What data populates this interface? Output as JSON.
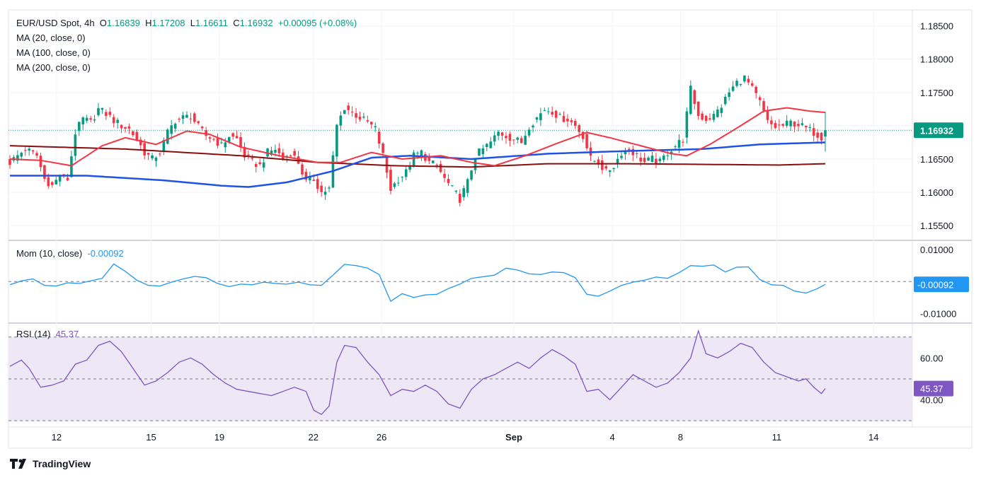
{
  "legend": {
    "symbol": "EUR/USD Spot, 4h",
    "open_label": "O",
    "open": "1.16839",
    "high_label": "H",
    "high": "1.17208",
    "low_label": "L",
    "low": "1.16611",
    "close_label": "C",
    "close": "1.16932",
    "change": "+0.00095 (+0.08%)",
    "ma20": "MA (20, close, 0)",
    "ma100": "MA (100, close, 0)",
    "ma200": "MA (200, close, 0)"
  },
  "momentum": {
    "label": "Mom (10, close)",
    "value": "-0.00092"
  },
  "rsi": {
    "label": "RSI (14)",
    "value": "45.37"
  },
  "branding": {
    "name": "TradingView"
  },
  "colors": {
    "up": "#089981",
    "down": "#f23645",
    "ma20": "#f23645",
    "ma100": "#1e53e5",
    "ma200": "#880e0e",
    "mom": "#2196f3",
    "rsi": "#7e57c2",
    "rsi_band": "#ede7f6"
  },
  "chart_data": {
    "type": "candlestick",
    "price_axis": {
      "ticks": [
        "1.18500",
        "1.18000",
        "1.17500",
        "1.17000",
        "1.16500",
        "1.16000",
        "1.15500"
      ],
      "range": [
        1.153,
        1.1874
      ],
      "last_price_label": "1.16932",
      "last_price": 1.16932
    },
    "x_axis": {
      "ticks": [
        {
          "label": "12",
          "pos": 0.0532
        },
        {
          "label": "15",
          "pos": 0.1578
        },
        {
          "label": "19",
          "pos": 0.2333
        },
        {
          "label": "22",
          "pos": 0.3373
        },
        {
          "label": "26",
          "pos": 0.4128
        },
        {
          "label": "Sep",
          "pos": 0.5591,
          "bold": true
        },
        {
          "label": "4",
          "pos": 0.6681
        },
        {
          "label": "8",
          "pos": 0.7434
        },
        {
          "label": "11",
          "pos": 0.8499
        },
        {
          "label": "14",
          "pos": 0.9571
        }
      ]
    },
    "candles": [],
    "anchor_closes": [
      [
        0,
        1.1645
      ],
      [
        4,
        1.1665
      ],
      [
        7,
        1.1655
      ],
      [
        9,
        1.162
      ],
      [
        11,
        1.161
      ],
      [
        13,
        1.1625
      ],
      [
        15,
        1.162
      ],
      [
        17,
        1.169
      ],
      [
        19,
        1.171
      ],
      [
        21,
        1.1705
      ],
      [
        23,
        1.1725
      ],
      [
        25,
        1.1718
      ],
      [
        27,
        1.1708
      ],
      [
        29,
        1.17
      ],
      [
        31,
        1.1695
      ],
      [
        33,
        1.168
      ],
      [
        35,
        1.166
      ],
      [
        37,
        1.165
      ],
      [
        39,
        1.166
      ],
      [
        41,
        1.169
      ],
      [
        43,
        1.1708
      ],
      [
        45,
        1.1712
      ],
      [
        47,
        1.1715
      ],
      [
        49,
        1.1698
      ],
      [
        51,
        1.1685
      ],
      [
        53,
        1.168
      ],
      [
        55,
        1.167
      ],
      [
        57,
        1.1685
      ],
      [
        59,
        1.168
      ],
      [
        61,
        1.1655
      ],
      [
        63,
        1.1645
      ],
      [
        65,
        1.164
      ],
      [
        67,
        1.166
      ],
      [
        69,
        1.1665
      ],
      [
        71,
        1.165
      ],
      [
        73,
        1.166
      ],
      [
        75,
        1.1645
      ],
      [
        77,
        1.1615
      ],
      [
        79,
        1.162
      ],
      [
        81,
        1.16
      ],
      [
        83,
        1.1605
      ],
      [
        85,
        1.17
      ],
      [
        87,
        1.1728
      ],
      [
        89,
        1.172
      ],
      [
        91,
        1.1712
      ],
      [
        93,
        1.1705
      ],
      [
        95,
        1.1695
      ],
      [
        97,
        1.1655
      ],
      [
        99,
        1.1605
      ],
      [
        101,
        1.162
      ],
      [
        103,
        1.163
      ],
      [
        105,
        1.1655
      ],
      [
        107,
        1.166
      ],
      [
        109,
        1.1645
      ],
      [
        111,
        1.164
      ],
      [
        113,
        1.162
      ],
      [
        115,
        1.1605
      ],
      [
        117,
        1.159
      ],
      [
        119,
        1.1615
      ],
      [
        121,
        1.1655
      ],
      [
        123,
        1.1665
      ],
      [
        125,
        1.1675
      ],
      [
        127,
        1.169
      ],
      [
        129,
        1.1685
      ],
      [
        131,
        1.168
      ],
      [
        133,
        1.1675
      ],
      [
        135,
        1.17
      ],
      [
        137,
        1.1712
      ],
      [
        139,
        1.1725
      ],
      [
        141,
        1.1722
      ],
      [
        143,
        1.1712
      ],
      [
        145,
        1.171
      ],
      [
        147,
        1.17
      ],
      [
        149,
        1.1685
      ],
      [
        151,
        1.165
      ],
      [
        153,
        1.1645
      ],
      [
        155,
        1.163
      ],
      [
        157,
        1.164
      ],
      [
        159,
        1.166
      ],
      [
        161,
        1.1665
      ],
      [
        163,
        1.1655
      ],
      [
        165,
        1.1645
      ],
      [
        167,
        1.165
      ],
      [
        169,
        1.1645
      ],
      [
        171,
        1.166
      ],
      [
        173,
        1.167
      ],
      [
        175,
        1.168
      ],
      [
        177,
        1.1755
      ],
      [
        179,
        1.1715
      ],
      [
        181,
        1.171
      ],
      [
        183,
        1.1715
      ],
      [
        185,
        1.173
      ],
      [
        187,
        1.175
      ],
      [
        189,
        1.1765
      ],
      [
        191,
        1.1772
      ],
      [
        193,
        1.1755
      ],
      [
        195,
        1.1735
      ],
      [
        197,
        1.1705
      ],
      [
        199,
        1.1698
      ],
      [
        201,
        1.17
      ],
      [
        203,
        1.1705
      ],
      [
        205,
        1.1702
      ],
      [
        207,
        1.1696
      ],
      [
        209,
        1.169
      ],
      [
        211,
        1.1683
      ],
      [
        212,
        1.1693
      ]
    ],
    "ma20": [
      [
        0,
        1.165
      ],
      [
        8,
        1.1648
      ],
      [
        16,
        1.164
      ],
      [
        24,
        1.167
      ],
      [
        30,
        1.1682
      ],
      [
        38,
        1.1672
      ],
      [
        46,
        1.1692
      ],
      [
        52,
        1.1687
      ],
      [
        60,
        1.1668
      ],
      [
        70,
        1.1655
      ],
      [
        80,
        1.1645
      ],
      [
        86,
        1.1645
      ],
      [
        94,
        1.166
      ],
      [
        102,
        1.165
      ],
      [
        112,
        1.1655
      ],
      [
        120,
        1.1645
      ],
      [
        126,
        1.164
      ],
      [
        134,
        1.1655
      ],
      [
        142,
        1.1673
      ],
      [
        150,
        1.169
      ],
      [
        156,
        1.1682
      ],
      [
        164,
        1.167
      ],
      [
        172,
        1.1658
      ],
      [
        176,
        1.1655
      ],
      [
        182,
        1.1672
      ],
      [
        190,
        1.17
      ],
      [
        196,
        1.1722
      ],
      [
        202,
        1.1727
      ],
      [
        208,
        1.1722
      ],
      [
        212,
        1.172
      ]
    ],
    "ma100": [
      [
        0,
        1.1625
      ],
      [
        20,
        1.1625
      ],
      [
        40,
        1.1618
      ],
      [
        55,
        1.161
      ],
      [
        62,
        1.1608
      ],
      [
        72,
        1.1615
      ],
      [
        84,
        1.1632
      ],
      [
        94,
        1.1652
      ],
      [
        104,
        1.1655
      ],
      [
        120,
        1.165
      ],
      [
        140,
        1.1658
      ],
      [
        160,
        1.1662
      ],
      [
        180,
        1.1665
      ],
      [
        195,
        1.1672
      ],
      [
        212,
        1.1675
      ]
    ],
    "ma200": [
      [
        0,
        1.167
      ],
      [
        30,
        1.1665
      ],
      [
        60,
        1.1655
      ],
      [
        80,
        1.1645
      ],
      [
        100,
        1.164
      ],
      [
        120,
        1.1638
      ],
      [
        140,
        1.1643
      ],
      [
        160,
        1.1643
      ],
      [
        180,
        1.1642
      ],
      [
        200,
        1.1641
      ],
      [
        212,
        1.1643
      ]
    ],
    "momentum": {
      "ticks": [
        "0.01000",
        "-0.01000"
      ],
      "range": [
        -0.0128,
        0.0118
      ],
      "values": [
        [
          0,
          -0.001
        ],
        [
          3,
          0.0002
        ],
        [
          6,
          0.0008
        ],
        [
          9,
          -0.0012
        ],
        [
          12,
          -0.0014
        ],
        [
          15,
          -0.0004
        ],
        [
          18,
          -0.0006
        ],
        [
          21,
          0.0002
        ],
        [
          24,
          0.001
        ],
        [
          27,
          0.0055
        ],
        [
          30,
          0.0032
        ],
        [
          33,
          0.0004
        ],
        [
          36,
          -0.0012
        ],
        [
          39,
          -0.0014
        ],
        [
          42,
          -0.0002
        ],
        [
          45,
          0.0008
        ],
        [
          48,
          0.0016
        ],
        [
          51,
          0.0012
        ],
        [
          54,
          -0.0006
        ],
        [
          57,
          -0.0016
        ],
        [
          60,
          -0.0008
        ],
        [
          63,
          -0.001
        ],
        [
          66,
          -0.0002
        ],
        [
          69,
          -0.0006
        ],
        [
          72,
          -0.0008
        ],
        [
          75,
          -0.0002
        ],
        [
          78,
          -0.001
        ],
        [
          81,
          -0.0012
        ],
        [
          84,
          0.002
        ],
        [
          87,
          0.0054
        ],
        [
          90,
          0.005
        ],
        [
          93,
          0.0042
        ],
        [
          96,
          0.0022
        ],
        [
          99,
          -0.0062
        ],
        [
          102,
          -0.0038
        ],
        [
          105,
          -0.005
        ],
        [
          108,
          -0.0042
        ],
        [
          111,
          -0.004
        ],
        [
          114,
          -0.0022
        ],
        [
          117,
          -0.0008
        ],
        [
          120,
          0.001
        ],
        [
          123,
          0.0015
        ],
        [
          126,
          0.002
        ],
        [
          129,
          0.0042
        ],
        [
          132,
          0.0036
        ],
        [
          135,
          0.0024
        ],
        [
          138,
          0.0022
        ],
        [
          141,
          0.003
        ],
        [
          144,
          0.0028
        ],
        [
          147,
          0.0012
        ],
        [
          150,
          -0.004
        ],
        [
          153,
          -0.0046
        ],
        [
          156,
          -0.003
        ],
        [
          159,
          -0.0012
        ],
        [
          162,
          -0.0002
        ],
        [
          165,
          0.0004
        ],
        [
          168,
          0.0014
        ],
        [
          171,
          0.001
        ],
        [
          174,
          0.0028
        ],
        [
          177,
          0.005
        ],
        [
          180,
          0.0048
        ],
        [
          183,
          0.0052
        ],
        [
          186,
          0.003
        ],
        [
          189,
          0.0045
        ],
        [
          192,
          0.0046
        ],
        [
          195,
          0.0006
        ],
        [
          198,
          -0.001
        ],
        [
          201,
          -0.0012
        ],
        [
          204,
          -0.003
        ],
        [
          207,
          -0.0036
        ],
        [
          210,
          -0.0022
        ],
        [
          212,
          -0.0009
        ]
      ]
    },
    "rsi": {
      "ticks": [
        "60.00",
        "40.00"
      ],
      "range": [
        27,
        76
      ],
      "bands": [
        30,
        70
      ],
      "mid": 50,
      "values": [
        [
          0,
          56
        ],
        [
          3,
          59
        ],
        [
          5,
          55
        ],
        [
          8,
          46
        ],
        [
          11,
          47
        ],
        [
          14,
          49
        ],
        [
          17,
          57
        ],
        [
          20,
          59
        ],
        [
          23,
          66
        ],
        [
          26,
          68
        ],
        [
          29,
          63
        ],
        [
          32,
          55
        ],
        [
          35,
          47
        ],
        [
          38,
          49
        ],
        [
          41,
          53
        ],
        [
          44,
          58
        ],
        [
          47,
          60
        ],
        [
          50,
          57
        ],
        [
          53,
          52
        ],
        [
          56,
          48
        ],
        [
          59,
          45
        ],
        [
          62,
          44
        ],
        [
          65,
          43
        ],
        [
          68,
          42
        ],
        [
          71,
          44
        ],
        [
          74,
          46
        ],
        [
          77,
          44
        ],
        [
          79,
          35
        ],
        [
          81,
          33
        ],
        [
          83,
          37
        ],
        [
          85,
          58
        ],
        [
          87,
          66
        ],
        [
          90,
          65
        ],
        [
          93,
          58
        ],
        [
          96,
          52
        ],
        [
          99,
          42
        ],
        [
          102,
          45
        ],
        [
          105,
          44
        ],
        [
          108,
          47
        ],
        [
          111,
          44
        ],
        [
          114,
          38
        ],
        [
          117,
          36
        ],
        [
          120,
          45
        ],
        [
          123,
          50
        ],
        [
          126,
          52
        ],
        [
          129,
          55
        ],
        [
          132,
          58
        ],
        [
          135,
          55
        ],
        [
          138,
          60
        ],
        [
          141,
          64
        ],
        [
          144,
          61
        ],
        [
          147,
          57
        ],
        [
          150,
          44
        ],
        [
          153,
          45
        ],
        [
          156,
          40
        ],
        [
          159,
          46
        ],
        [
          162,
          52
        ],
        [
          165,
          49
        ],
        [
          168,
          46
        ],
        [
          171,
          48
        ],
        [
          174,
          53
        ],
        [
          177,
          60
        ],
        [
          179,
          73
        ],
        [
          181,
          62
        ],
        [
          184,
          60
        ],
        [
          187,
          63
        ],
        [
          190,
          67
        ],
        [
          193,
          65
        ],
        [
          196,
          58
        ],
        [
          199,
          53
        ],
        [
          202,
          51
        ],
        [
          205,
          49
        ],
        [
          207,
          50
        ],
        [
          209,
          46
        ],
        [
          211,
          43
        ],
        [
          212,
          45.37
        ]
      ]
    }
  }
}
